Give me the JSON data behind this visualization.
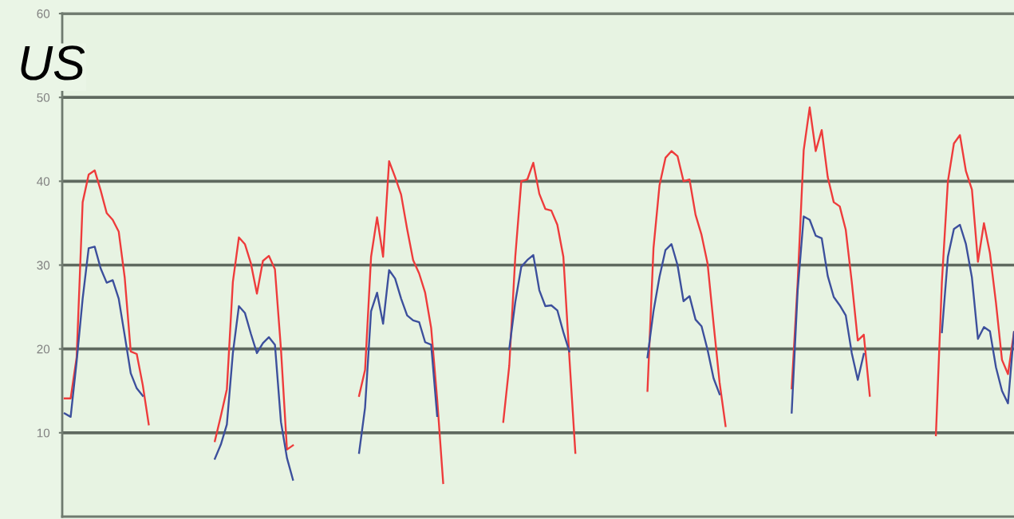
{
  "chart_data": {
    "type": "line",
    "annotations": [
      "US"
    ],
    "categories": [
      null,
      null,
      null,
      null,
      null,
      null,
      null,
      null,
      null,
      null,
      null,
      null,
      null,
      null,
      null,
      null,
      null,
      null,
      null,
      null,
      null,
      null,
      null,
      null,
      null,
      null,
      null,
      null,
      null,
      null,
      null,
      null,
      null,
      null,
      null,
      null,
      null,
      null,
      null,
      null,
      null,
      null,
      null,
      null,
      null,
      null,
      null,
      null,
      null,
      null,
      null,
      null,
      null,
      null,
      null,
      null,
      null,
      null,
      null,
      null,
      null,
      null,
      null,
      null,
      null,
      null,
      null,
      null,
      null,
      null,
      null,
      null,
      null,
      null,
      null,
      null,
      null,
      null,
      null,
      null,
      null,
      null,
      null,
      null,
      null,
      null,
      null,
      null,
      null,
      null,
      null,
      null,
      null,
      null,
      null,
      null,
      null,
      null,
      null,
      null,
      null,
      null,
      null,
      null,
      null,
      null,
      null,
      null,
      null,
      null,
      null,
      null,
      null,
      null,
      null,
      null,
      null,
      null,
      null,
      null,
      null,
      null,
      null,
      null,
      null,
      null,
      null,
      null,
      null,
      null,
      null,
      null,
      null,
      null,
      null,
      null,
      null,
      null,
      null,
      null,
      null,
      null,
      null,
      null,
      null,
      null,
      null,
      null,
      null,
      null,
      null,
      null,
      null,
      null,
      null,
      null,
      null,
      null,
      null
    ],
    "series": [
      {
        "color": "#ee3b3b",
        "values": [
          14.1,
          14.1,
          19,
          37.5,
          40.8,
          41.3,
          38.9,
          36.2,
          35.4,
          34,
          28.5,
          19.7,
          19.4,
          15.7,
          11,
          null,
          null,
          null,
          null,
          null,
          null,
          null,
          null,
          null,
          null,
          9,
          12,
          15.2,
          28,
          33.3,
          32.5,
          30.2,
          26.6,
          30.5,
          31.1,
          29.5,
          20,
          8,
          8.5,
          null,
          null,
          null,
          null,
          null,
          null,
          null,
          null,
          null,
          null,
          14.4,
          17.5,
          31,
          35.7,
          31,
          42.4,
          40.5,
          38.4,
          34.3,
          30.6,
          29,
          26.7,
          22.5,
          14,
          4,
          null,
          null,
          null,
          null,
          null,
          null,
          null,
          null,
          null,
          11.3,
          18,
          31,
          40,
          40.2,
          42.2,
          38.5,
          36.7,
          36.5,
          34.8,
          31,
          19,
          7.6,
          null,
          null,
          null,
          null,
          null,
          null,
          null,
          null,
          null,
          null,
          null,
          15,
          32,
          39.5,
          42.8,
          43.6,
          43,
          40,
          40.2,
          36,
          33.6,
          30.2,
          23,
          16,
          10.8,
          null,
          null,
          null,
          null,
          null,
          null,
          null,
          null,
          null,
          null,
          15.3,
          28,
          43.7,
          48.8,
          43.6,
          46.1,
          40.5,
          37.5,
          37,
          34.2,
          28,
          21,
          21.7,
          14.4,
          null,
          null,
          null,
          null,
          null,
          null,
          null,
          null,
          null,
          null,
          9.7,
          28,
          40,
          44.5,
          45.5,
          41.2,
          39,
          30.4,
          35,
          31.4,
          25.5,
          18.7,
          17,
          22
        ]
      },
      {
        "color": "#3c4f9c",
        "values": [
          12.3,
          11.9,
          18.5,
          26,
          32,
          32.2,
          29.6,
          27.9,
          28.2,
          26,
          21.6,
          17.1,
          15.3,
          14.4,
          null,
          null,
          null,
          null,
          null,
          null,
          null,
          null,
          null,
          null,
          null,
          6.9,
          8.6,
          11,
          19.5,
          25.1,
          24.3,
          21.8,
          19.5,
          20.7,
          21.4,
          20.5,
          11.3,
          7,
          4.4,
          null,
          null,
          null,
          null,
          null,
          null,
          null,
          null,
          null,
          null,
          7.6,
          13,
          24.5,
          26.7,
          23,
          29.4,
          28.4,
          26,
          24,
          23.4,
          23.2,
          20.8,
          20.5,
          12,
          null,
          null,
          null,
          null,
          null,
          null,
          null,
          null,
          null,
          null,
          null,
          20,
          25.6,
          29.8,
          30.6,
          31.2,
          27,
          25.1,
          25.2,
          24.6,
          22,
          19.7,
          null,
          null,
          null,
          null,
          null,
          null,
          null,
          null,
          null,
          null,
          null,
          null,
          19,
          24.5,
          28.6,
          31.8,
          32.5,
          30,
          25.7,
          26.3,
          23.5,
          22.7,
          19.9,
          16.5,
          14.6,
          null,
          null,
          null,
          null,
          null,
          null,
          null,
          null,
          null,
          null,
          null,
          12.4,
          27,
          35.8,
          35.4,
          33.5,
          33.2,
          28.7,
          26.2,
          25.2,
          24,
          19.5,
          16.3,
          19.4,
          null,
          null,
          null,
          null,
          null,
          null,
          null,
          null,
          null,
          null,
          null,
          null,
          22,
          31,
          34.3,
          34.8,
          32.5,
          28.5,
          21.2,
          22.6,
          22.1,
          17.8,
          15,
          13.5,
          22
        ]
      }
    ],
    "ylim": [
      0,
      60
    ],
    "yticks": [
      10,
      20,
      30,
      40,
      50,
      60
    ],
    "grid": "y",
    "tick_labels": "y",
    "line_style": "solid"
  }
}
